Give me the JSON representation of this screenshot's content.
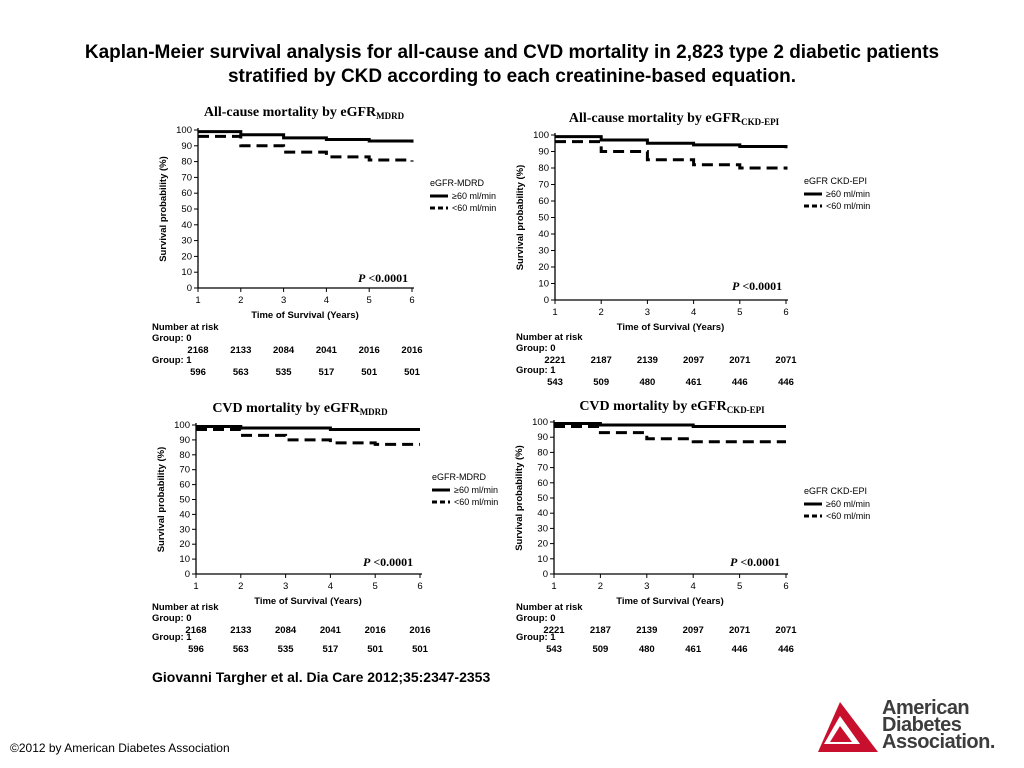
{
  "slide": {
    "title_line1": "Kaplan-Meier survival analysis for all-cause and CVD mortality in 2,823 type 2 diabetic patients",
    "title_line2": "stratified by CKD according to each creatinine-based equation.",
    "citation": "Giovanni Targher et al. Dia Care 2012;35:2347-2353",
    "copyright": "©2012 by American Diabetes Association",
    "logo": {
      "line1": "American",
      "line2": "Diabetes",
      "line3": "Association.",
      "mark_color": "#c8102e"
    }
  },
  "chart_data": [
    {
      "type": "line",
      "title": "All-cause mortality by eGFR",
      "title_subscript": "MDRD",
      "xlabel": "Time of Survival (Years)",
      "ylabel": "Survival probability (%)",
      "xlim": [
        1,
        6
      ],
      "ylim": [
        0,
        100
      ],
      "x_ticks": [
        1,
        2,
        3,
        4,
        5,
        6
      ],
      "y_ticks": [
        0,
        10,
        20,
        30,
        40,
        50,
        60,
        70,
        80,
        90,
        100
      ],
      "legend_title": "eGFR-MDRD",
      "legend_position": "right",
      "series": [
        {
          "name": "≥60 ml/min",
          "style": "solid",
          "x": [
            1,
            2,
            3,
            4,
            5,
            6
          ],
          "y": [
            99,
            97,
            95,
            94,
            93,
            92
          ]
        },
        {
          "name": "<60 ml/min",
          "style": "dashed",
          "x": [
            1,
            2,
            3,
            4,
            5,
            6
          ],
          "y": [
            96,
            90,
            86,
            83,
            81,
            80
          ]
        }
      ],
      "annotation_p": "P",
      "annotation_value": "<0.0001",
      "risk_table": {
        "heading": "Number at risk",
        "groups": [
          {
            "label": "Group: 0",
            "values": [
              "2168",
              "2133",
              "2084",
              "2041",
              "2016",
              "2016"
            ]
          },
          {
            "label": "Group: 1",
            "values": [
              "596",
              "563",
              "535",
              "517",
              "501",
              "501"
            ]
          }
        ]
      }
    },
    {
      "type": "line",
      "title": "All-cause mortality by eGFR",
      "title_subscript": "CKD-EPI",
      "xlabel": "Time of Survival (Years)",
      "ylabel": "Survival probability (%)",
      "xlim": [
        1,
        6
      ],
      "ylim": [
        0,
        100
      ],
      "x_ticks": [
        1,
        2,
        3,
        4,
        5,
        6
      ],
      "y_ticks": [
        0,
        10,
        20,
        30,
        40,
        50,
        60,
        70,
        80,
        90,
        100
      ],
      "legend_title": "eGFR CKD-EPI",
      "legend_position": "right",
      "series": [
        {
          "name": "≥60 ml/min",
          "style": "solid",
          "x": [
            1,
            2,
            3,
            4,
            5,
            6
          ],
          "y": [
            99,
            97,
            95,
            94,
            93,
            92
          ]
        },
        {
          "name": "<60 ml/min",
          "style": "dashed",
          "x": [
            1,
            2,
            3,
            4,
            5,
            6
          ],
          "y": [
            96,
            90,
            85,
            82,
            80,
            79
          ]
        }
      ],
      "annotation_p": "P",
      "annotation_value": "<0.0001",
      "risk_table": {
        "heading": "Number at risk",
        "groups": [
          {
            "label": "Group: 0",
            "values": [
              "2221",
              "2187",
              "2139",
              "2097",
              "2071",
              "2071"
            ]
          },
          {
            "label": "Group: 1",
            "values": [
              "543",
              "509",
              "480",
              "461",
              "446",
              "446"
            ]
          }
        ]
      }
    },
    {
      "type": "line",
      "title": "CVD mortality by eGFR",
      "title_subscript": "MDRD",
      "xlabel": "Time of Survival (Years)",
      "ylabel": "Survival probability (%)",
      "xlim": [
        1,
        6
      ],
      "ylim": [
        0,
        100
      ],
      "x_ticks": [
        1,
        2,
        3,
        4,
        5,
        6
      ],
      "y_ticks": [
        0,
        10,
        20,
        30,
        40,
        50,
        60,
        70,
        80,
        90,
        100
      ],
      "legend_title": "eGFR-MDRD",
      "legend_position": "right",
      "series": [
        {
          "name": "≥60 ml/min",
          "style": "solid",
          "x": [
            1,
            2,
            3,
            4,
            5,
            6
          ],
          "y": [
            99,
            98,
            98,
            97,
            97,
            97
          ]
        },
        {
          "name": "<60 ml/min",
          "style": "dashed",
          "x": [
            1,
            2,
            3,
            4,
            5,
            6
          ],
          "y": [
            97,
            93,
            90,
            88,
            87,
            87
          ]
        }
      ],
      "annotation_p": "P",
      "annotation_value": "<0.0001",
      "risk_table": {
        "heading": "Number at risk",
        "groups": [
          {
            "label": "Group: 0",
            "values": [
              "2168",
              "2133",
              "2084",
              "2041",
              "2016",
              "2016"
            ]
          },
          {
            "label": "Group: 1",
            "values": [
              "596",
              "563",
              "535",
              "517",
              "501",
              "501"
            ]
          }
        ]
      }
    },
    {
      "type": "line",
      "title": "CVD mortality by eGFR",
      "title_subscript": "CKD-EPI",
      "xlabel": "Time of Survival (Years)",
      "ylabel": "Survival probability (%)",
      "xlim": [
        1,
        6
      ],
      "ylim": [
        0,
        100
      ],
      "x_ticks": [
        1,
        2,
        3,
        4,
        5,
        6
      ],
      "y_ticks": [
        0,
        10,
        20,
        30,
        40,
        50,
        60,
        70,
        80,
        90,
        100
      ],
      "legend_title": "eGFR CKD-EPI",
      "legend_position": "right",
      "series": [
        {
          "name": "≥60 ml/min",
          "style": "solid",
          "x": [
            1,
            2,
            3,
            4,
            5,
            6
          ],
          "y": [
            99,
            98,
            98,
            97,
            97,
            97
          ]
        },
        {
          "name": "<60 ml/min",
          "style": "dashed",
          "x": [
            1,
            2,
            3,
            4,
            5,
            6
          ],
          "y": [
            97,
            93,
            89,
            87,
            87,
            87
          ]
        }
      ],
      "annotation_p": "P",
      "annotation_value": "<0.0001",
      "risk_table": {
        "heading": "Number at risk",
        "groups": [
          {
            "label": "Group: 0",
            "values": [
              "2221",
              "2187",
              "2139",
              "2097",
              "2071",
              "2071"
            ]
          },
          {
            "label": "Group: 1",
            "values": [
              "543",
              "509",
              "480",
              "461",
              "446",
              "446"
            ]
          }
        ]
      }
    }
  ]
}
